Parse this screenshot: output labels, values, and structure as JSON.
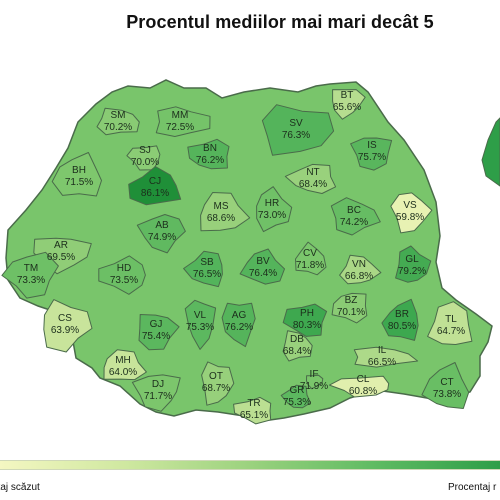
{
  "title": "Procentul mediilor mai mari decât 5",
  "legend": {
    "low_label": "ntaj scăzut",
    "high_label": "Procentaj r",
    "low_color": "#f4f7c2",
    "high_color": "#2e9e48"
  },
  "colors": {
    "border": "#4a6b4a",
    "background": "#ffffff"
  },
  "counties": [
    {
      "code": "SM",
      "value": "70.2%"
    },
    {
      "code": "MM",
      "value": "72.5%"
    },
    {
      "code": "SV",
      "value": "76.3%"
    },
    {
      "code": "BT",
      "value": "65.6%"
    },
    {
      "code": "IS",
      "value": "75.7%"
    },
    {
      "code": "SJ",
      "value": "70.0%"
    },
    {
      "code": "BN",
      "value": "76.2%"
    },
    {
      "code": "NT",
      "value": "68.4%"
    },
    {
      "code": "BH",
      "value": "71.5%"
    },
    {
      "code": "CJ",
      "value": "86.1%"
    },
    {
      "code": "MS",
      "value": "68.6%"
    },
    {
      "code": "HR",
      "value": "73.0%"
    },
    {
      "code": "BC",
      "value": "74.2%"
    },
    {
      "code": "VS",
      "value": "59.8%"
    },
    {
      "code": "AR",
      "value": "69.5%"
    },
    {
      "code": "AB",
      "value": "74.9%"
    },
    {
      "code": "TM",
      "value": "73.3%"
    },
    {
      "code": "HD",
      "value": "73.5%"
    },
    {
      "code": "SB",
      "value": "76.5%"
    },
    {
      "code": "BV",
      "value": "76.4%"
    },
    {
      "code": "CV",
      "value": "71.8%"
    },
    {
      "code": "VN",
      "value": "66.8%"
    },
    {
      "code": "GL",
      "value": "79.2%"
    },
    {
      "code": "CS",
      "value": "63.9%"
    },
    {
      "code": "GJ",
      "value": "75.4%"
    },
    {
      "code": "VL",
      "value": "75.3%"
    },
    {
      "code": "AG",
      "value": "76.2%"
    },
    {
      "code": "PH",
      "value": "80.3%"
    },
    {
      "code": "BZ",
      "value": "70.1%"
    },
    {
      "code": "BR",
      "value": "80.5%"
    },
    {
      "code": "TL",
      "value": "64.7%"
    },
    {
      "code": "MH",
      "value": "64.0%"
    },
    {
      "code": "DB",
      "value": "68.4%"
    },
    {
      "code": "IL",
      "value": "66.5%"
    },
    {
      "code": "OT",
      "value": "68.7%"
    },
    {
      "code": "IF",
      "value": "71.9%"
    },
    {
      "code": "DJ",
      "value": "71.7%"
    },
    {
      "code": "CL",
      "value": "60.8%"
    },
    {
      "code": "TR",
      "value": "65.1%"
    },
    {
      "code": "GR",
      "value": "75.3%"
    },
    {
      "code": "CT",
      "value": "73.8%"
    }
  ]
}
